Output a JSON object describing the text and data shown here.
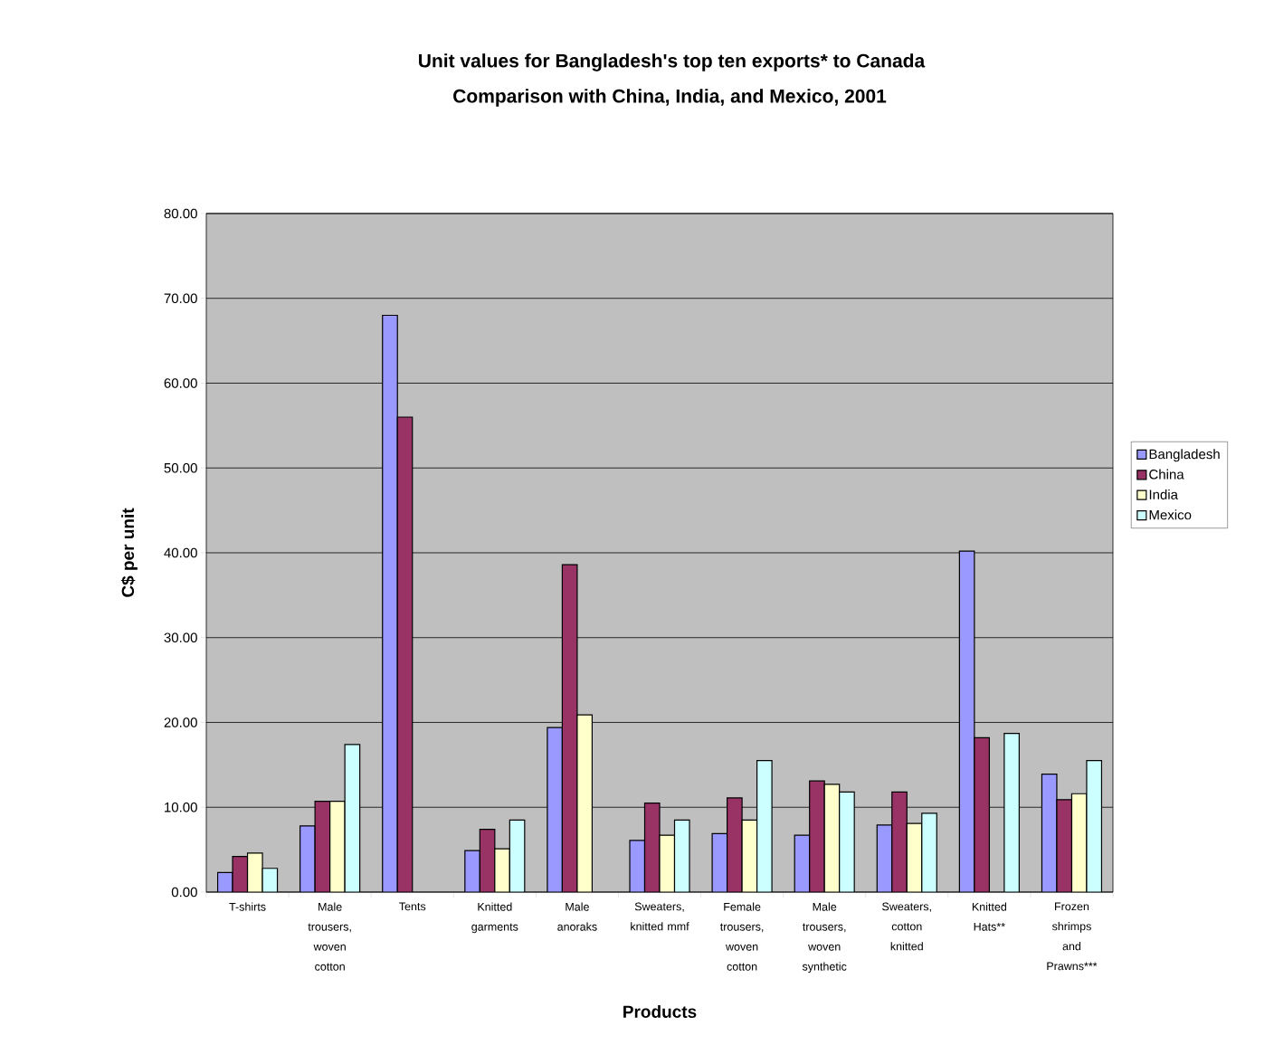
{
  "chart_data": {
    "type": "bar",
    "title": "Unit values for Bangladesh's top ten exports* to Canada",
    "subtitle": "Comparison with China, India, and Mexico, 2001",
    "xlabel": "Products",
    "ylabel": "C$ per unit",
    "categories": [
      "T-shirts",
      "Male trousers, woven cotton",
      "Tents",
      "Knitted garments",
      "Male anoraks",
      "Sweaters, knitted mmf",
      "Female trousers, woven cotton",
      "Male trousers, woven synthetic",
      "Sweaters, cotton knitted",
      "Knitted Hats**",
      "Frozen shrimps and Prawns***"
    ],
    "series": [
      {
        "name": "Bangladesh",
        "color": "#9999ff",
        "values": [
          2.3,
          7.8,
          68.0,
          4.9,
          19.4,
          6.1,
          6.9,
          6.7,
          7.9,
          40.2,
          13.9
        ]
      },
      {
        "name": "China",
        "color": "#993366",
        "values": [
          4.2,
          10.7,
          56.0,
          7.4,
          38.6,
          10.5,
          11.1,
          13.1,
          11.8,
          18.2,
          10.9
        ]
      },
      {
        "name": "India",
        "color": "#ffffcc",
        "values": [
          4.6,
          10.7,
          null,
          5.1,
          20.9,
          6.7,
          8.5,
          12.7,
          8.1,
          null,
          11.6
        ]
      },
      {
        "name": "Mexico",
        "color": "#ccffff",
        "values": [
          2.8,
          17.4,
          null,
          8.5,
          null,
          8.5,
          15.5,
          11.8,
          9.3,
          18.7,
          15.5
        ]
      }
    ],
    "ylim": [
      0,
      80
    ],
    "yticks": [
      {
        "value": 0,
        "label": "0.00"
      },
      {
        "value": 10,
        "label": "10.00"
      },
      {
        "value": 20,
        "label": "20.00"
      },
      {
        "value": 30,
        "label": "30.00"
      },
      {
        "value": 40,
        "label": "40.00"
      },
      {
        "value": 50,
        "label": "50.00"
      },
      {
        "value": 60,
        "label": "60.00"
      },
      {
        "value": 70,
        "label": "70.00"
      },
      {
        "value": 80,
        "label": "80.00"
      }
    ],
    "grid": "y",
    "legend": "right"
  }
}
